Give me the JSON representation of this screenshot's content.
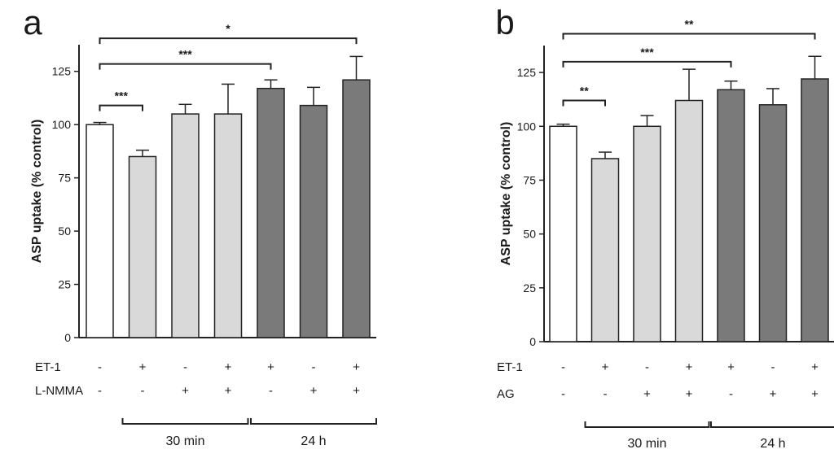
{
  "chart_data": [
    {
      "type": "bar",
      "panel_label": "a",
      "title": "",
      "xlabel": "",
      "ylabel": "ASP uptake (% control)",
      "ylim": [
        0,
        137.5
      ],
      "yticks": [
        "0",
        "25",
        "50",
        "75",
        "100",
        "125"
      ],
      "colors": [
        "#ffffff",
        "#d9d9d9",
        "#d9d9d9",
        "#d9d9d9",
        "#7a7a7a",
        "#7a7a7a",
        "#7a7a7a"
      ],
      "values": [
        100,
        85,
        105,
        105,
        117,
        109,
        121
      ],
      "errors": [
        1,
        3,
        4.5,
        14,
        4,
        8.5,
        11
      ],
      "conditions": [
        {
          "label": "ET-1",
          "values": [
            "-",
            "+",
            "-",
            "+",
            "+",
            "-",
            "+"
          ]
        },
        {
          "label": "L-NMMA",
          "values": [
            "-",
            "-",
            "+",
            "+",
            "-",
            "+",
            "+"
          ]
        }
      ],
      "groups": [
        {
          "label": "30 min",
          "from": 1,
          "to": 3
        },
        {
          "label": "24 h",
          "from": 4,
          "to": 6
        }
      ],
      "significance": [
        {
          "from": 0,
          "to": 1,
          "y": 109,
          "label": "***"
        },
        {
          "from": 0,
          "to": 4,
          "y": 128.5,
          "label": "***"
        },
        {
          "from": 0,
          "to": 6,
          "y": 140.5,
          "label": "*"
        }
      ]
    },
    {
      "type": "bar",
      "panel_label": "b",
      "title": "",
      "xlabel": "",
      "ylabel": "ASP uptake (% control)",
      "ylim": [
        0,
        137.5
      ],
      "yticks": [
        "0",
        "25",
        "50",
        "75",
        "100",
        "125"
      ],
      "colors": [
        "#ffffff",
        "#d9d9d9",
        "#d9d9d9",
        "#d9d9d9",
        "#7a7a7a",
        "#7a7a7a",
        "#7a7a7a"
      ],
      "values": [
        100,
        85,
        100,
        112,
        117,
        110,
        122
      ],
      "errors": [
        1,
        3,
        5,
        14.5,
        4,
        7.5,
        10.5
      ],
      "conditions": [
        {
          "label": "ET-1",
          "values": [
            "-",
            "+",
            "-",
            "+",
            "+",
            "-",
            "+"
          ]
        },
        {
          "label": "AG",
          "values": [
            "-",
            "-",
            "+",
            "+",
            "-",
            "+",
            "+"
          ]
        }
      ],
      "groups": [
        {
          "label": "30 min",
          "from": 1,
          "to": 3
        },
        {
          "label": "24 h",
          "from": 4,
          "to": 6
        }
      ],
      "significance": [
        {
          "from": 0,
          "to": 1,
          "y": 112,
          "label": "**"
        },
        {
          "from": 0,
          "to": 4,
          "y": 130,
          "label": "***"
        },
        {
          "from": 0,
          "to": 6,
          "y": 143,
          "label": "**"
        }
      ]
    }
  ]
}
